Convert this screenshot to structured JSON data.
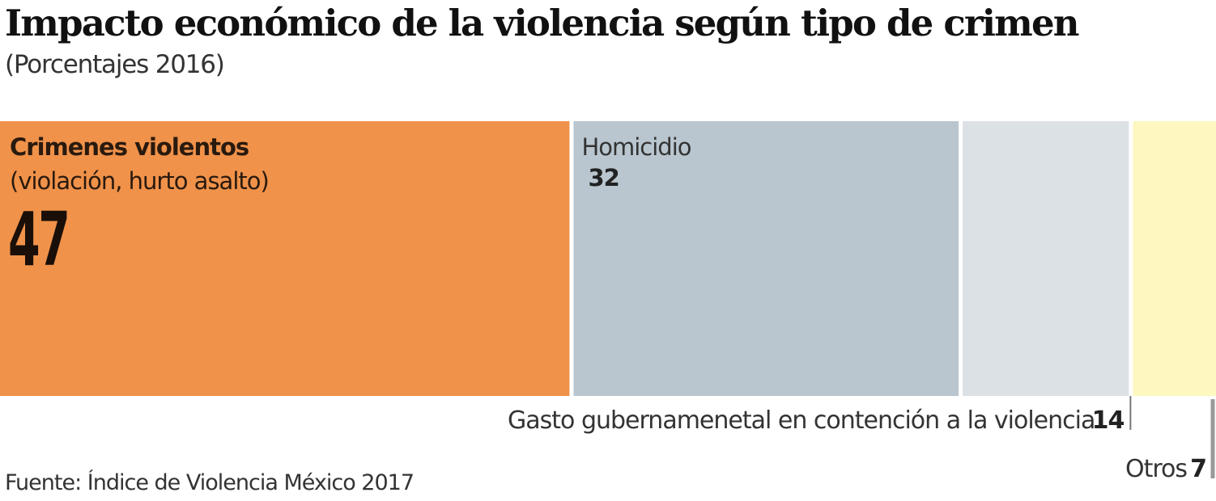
{
  "chart_data": {
    "type": "bar",
    "orientation": "horizontal-stacked-100",
    "title": "Impacto económico de la violencia según tipo de crimen",
    "subtitle": "(Porcentajes 2016)",
    "source": "Fuente: Índice de Violencia México 2017",
    "categories": [
      "Crimenes violentos",
      "Homicidio",
      "Gasto gubernamenetal en contención a la violencia",
      "Otros"
    ],
    "category_notes": [
      "(violación, hurto asalto)",
      "",
      "",
      ""
    ],
    "values": [
      47,
      32,
      14,
      7
    ],
    "colors": [
      "#F0924A",
      "#B9C6CF",
      "#DCE1E6",
      "#FEF8C0"
    ],
    "xlim": [
      0,
      100
    ],
    "grid": false,
    "legend": "none"
  }
}
